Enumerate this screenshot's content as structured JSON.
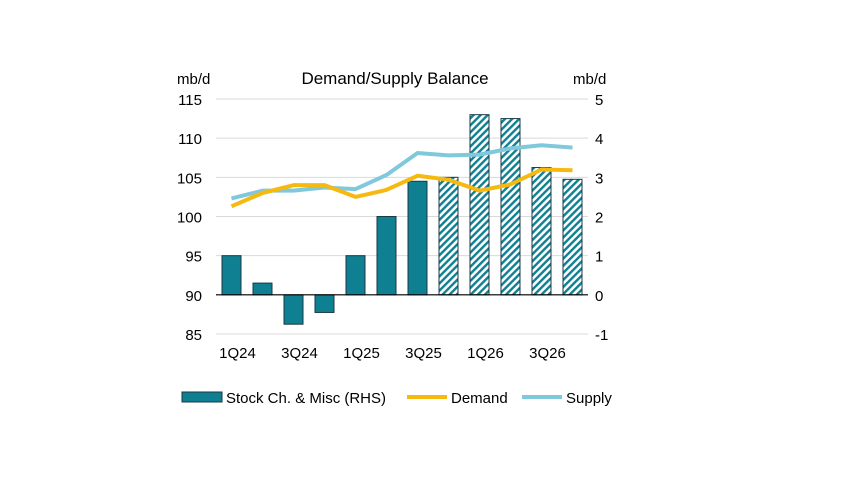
{
  "chart_data": {
    "type": "bar+line",
    "title": "Demand/Supply Balance",
    "ylabel_left": "mb/d",
    "ylabel_right": "mb/d",
    "ylim_left": [
      85,
      115
    ],
    "yticks_left": [
      85,
      90,
      95,
      100,
      105,
      110,
      115
    ],
    "ylim_right": [
      -1,
      5
    ],
    "yticks_right": [
      -1,
      0,
      1,
      2,
      3,
      4,
      5
    ],
    "grid": true,
    "legend_position": "bottom",
    "categories": [
      "1Q24",
      "2Q24",
      "3Q24",
      "4Q24",
      "1Q25",
      "2Q25",
      "3Q25",
      "4Q25",
      "1Q26",
      "2Q26",
      "3Q26",
      "4Q26"
    ],
    "xtick_labels": [
      "1Q24",
      "",
      "3Q24",
      "",
      "1Q25",
      "",
      "3Q25",
      "",
      "1Q26",
      "",
      "3Q26",
      ""
    ],
    "series": [
      {
        "name": "Stock Ch. & Misc (RHS)",
        "type": "bar",
        "axis": "right",
        "color": "#0f7f92",
        "values": [
          1.0,
          0.3,
          -0.75,
          -0.45,
          1.0,
          2.0,
          2.9,
          3.0,
          4.6,
          4.5,
          3.25,
          2.95
        ],
        "hatched_from": "4Q25"
      },
      {
        "name": "Demand",
        "type": "line",
        "axis": "left",
        "color": "#f5b90f",
        "values": [
          101.3,
          103.0,
          104.0,
          104.0,
          102.5,
          103.4,
          105.2,
          104.7,
          103.3,
          104.1,
          106.0,
          105.9
        ]
      },
      {
        "name": "Supply",
        "type": "line",
        "axis": "left",
        "color": "#80c8dc",
        "values": [
          102.3,
          103.3,
          103.3,
          103.7,
          103.5,
          105.3,
          108.1,
          107.8,
          107.9,
          108.7,
          109.1,
          108.8
        ]
      }
    ]
  }
}
